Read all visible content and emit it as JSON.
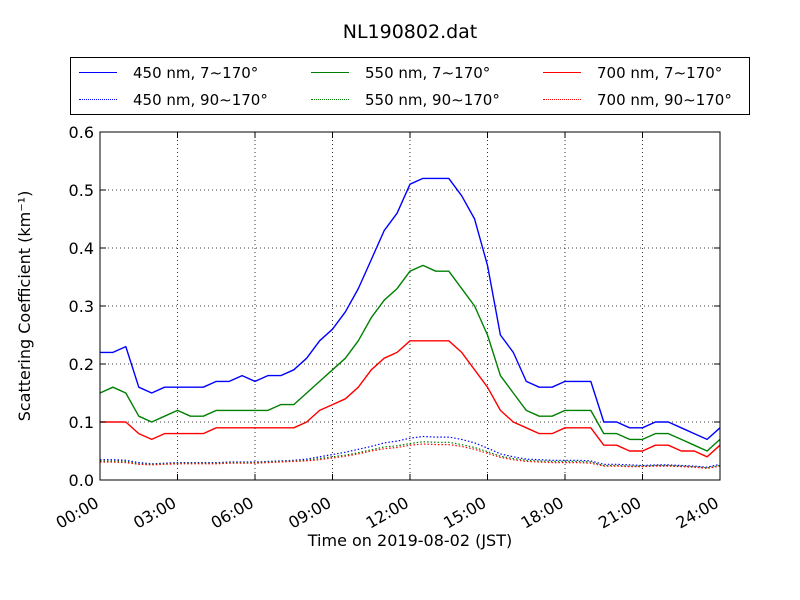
{
  "chart_data": {
    "type": "line",
    "title": "NL190802.dat",
    "xlabel": "Time on 2019-08-02 (JST)",
    "ylabel": "Scattering Coefficient (km⁻¹)",
    "xlim": [
      0,
      24
    ],
    "ylim": [
      0.0,
      0.6
    ],
    "x_tick_labels": [
      "00:00",
      "03:00",
      "06:00",
      "09:00",
      "12:00",
      "15:00",
      "18:00",
      "21:00",
      "24:00"
    ],
    "y_tick_labels": [
      "0.0",
      "0.1",
      "0.2",
      "0.3",
      "0.4",
      "0.5",
      "0.6"
    ],
    "grid": true,
    "legend_position": "top",
    "x": [
      0,
      0.5,
      1,
      1.5,
      2,
      2.5,
      3,
      3.5,
      4,
      4.5,
      5,
      5.5,
      6,
      6.5,
      7,
      7.5,
      8,
      8.5,
      9,
      9.5,
      10,
      10.5,
      11,
      11.5,
      12,
      12.5,
      13,
      13.5,
      14,
      14.5,
      15,
      15.5,
      16,
      16.5,
      17,
      17.5,
      18,
      18.5,
      19,
      19.5,
      20,
      20.5,
      21,
      21.5,
      22,
      22.5,
      23,
      23.5,
      24
    ],
    "series": [
      {
        "name": "450 nm, 7∼170°",
        "color": "#0000ff",
        "style": "solid",
        "values": [
          0.22,
          0.22,
          0.23,
          0.16,
          0.15,
          0.16,
          0.16,
          0.16,
          0.16,
          0.17,
          0.17,
          0.18,
          0.17,
          0.18,
          0.18,
          0.19,
          0.21,
          0.24,
          0.26,
          0.29,
          0.33,
          0.38,
          0.43,
          0.46,
          0.51,
          0.52,
          0.52,
          0.52,
          0.49,
          0.45,
          0.37,
          0.25,
          0.22,
          0.17,
          0.16,
          0.16,
          0.17,
          0.17,
          0.17,
          0.1,
          0.1,
          0.09,
          0.09,
          0.1,
          0.1,
          0.09,
          0.08,
          0.07,
          0.09
        ]
      },
      {
        "name": "550 nm, 7∼170°",
        "color": "#008000",
        "style": "solid",
        "values": [
          0.15,
          0.16,
          0.15,
          0.11,
          0.1,
          0.11,
          0.12,
          0.11,
          0.11,
          0.12,
          0.12,
          0.12,
          0.12,
          0.12,
          0.13,
          0.13,
          0.15,
          0.17,
          0.19,
          0.21,
          0.24,
          0.28,
          0.31,
          0.33,
          0.36,
          0.37,
          0.36,
          0.36,
          0.33,
          0.3,
          0.25,
          0.18,
          0.15,
          0.12,
          0.11,
          0.11,
          0.12,
          0.12,
          0.12,
          0.08,
          0.08,
          0.07,
          0.07,
          0.08,
          0.08,
          0.07,
          0.06,
          0.05,
          0.07
        ]
      },
      {
        "name": "700 nm, 7∼170°",
        "color": "#ff0000",
        "style": "solid",
        "values": [
          0.1,
          0.1,
          0.1,
          0.08,
          0.07,
          0.08,
          0.08,
          0.08,
          0.08,
          0.09,
          0.09,
          0.09,
          0.09,
          0.09,
          0.09,
          0.09,
          0.1,
          0.12,
          0.13,
          0.14,
          0.16,
          0.19,
          0.21,
          0.22,
          0.24,
          0.24,
          0.24,
          0.24,
          0.22,
          0.19,
          0.16,
          0.12,
          0.1,
          0.09,
          0.08,
          0.08,
          0.09,
          0.09,
          0.09,
          0.06,
          0.06,
          0.05,
          0.05,
          0.06,
          0.06,
          0.05,
          0.05,
          0.04,
          0.06
        ]
      },
      {
        "name": "450 nm, 90∼170°",
        "color": "#0000ff",
        "style": "dotted",
        "values": [
          0.035,
          0.035,
          0.034,
          0.03,
          0.028,
          0.029,
          0.03,
          0.03,
          0.03,
          0.03,
          0.031,
          0.031,
          0.031,
          0.032,
          0.033,
          0.034,
          0.036,
          0.04,
          0.044,
          0.048,
          0.053,
          0.058,
          0.064,
          0.067,
          0.072,
          0.075,
          0.074,
          0.074,
          0.07,
          0.064,
          0.055,
          0.045,
          0.04,
          0.036,
          0.035,
          0.034,
          0.034,
          0.034,
          0.033,
          0.027,
          0.027,
          0.026,
          0.025,
          0.026,
          0.026,
          0.025,
          0.024,
          0.022,
          0.027
        ]
      },
      {
        "name": "550 nm, 90∼170°",
        "color": "#008000",
        "style": "dotted",
        "values": [
          0.033,
          0.033,
          0.032,
          0.028,
          0.027,
          0.028,
          0.029,
          0.029,
          0.029,
          0.029,
          0.03,
          0.03,
          0.03,
          0.031,
          0.032,
          0.033,
          0.034,
          0.037,
          0.04,
          0.043,
          0.047,
          0.052,
          0.057,
          0.059,
          0.063,
          0.066,
          0.065,
          0.065,
          0.061,
          0.056,
          0.049,
          0.041,
          0.037,
          0.034,
          0.033,
          0.032,
          0.032,
          0.032,
          0.031,
          0.025,
          0.025,
          0.024,
          0.024,
          0.025,
          0.025,
          0.024,
          0.023,
          0.021,
          0.025
        ]
      },
      {
        "name": "700 nm, 90∼170°",
        "color": "#ff0000",
        "style": "dotted",
        "values": [
          0.031,
          0.031,
          0.03,
          0.027,
          0.026,
          0.027,
          0.028,
          0.028,
          0.028,
          0.028,
          0.029,
          0.029,
          0.029,
          0.03,
          0.031,
          0.032,
          0.033,
          0.035,
          0.038,
          0.041,
          0.045,
          0.05,
          0.054,
          0.056,
          0.06,
          0.062,
          0.061,
          0.061,
          0.058,
          0.053,
          0.046,
          0.039,
          0.035,
          0.032,
          0.031,
          0.03,
          0.03,
          0.03,
          0.029,
          0.024,
          0.024,
          0.023,
          0.023,
          0.024,
          0.024,
          0.023,
          0.022,
          0.02,
          0.024
        ]
      }
    ]
  },
  "legend": {
    "items": [
      {
        "label": "450 nm, 7∼170°",
        "color": "#0000ff",
        "style": "solid"
      },
      {
        "label": "550 nm, 7∼170°",
        "color": "#008000",
        "style": "solid"
      },
      {
        "label": "700 nm, 7∼170°",
        "color": "#ff0000",
        "style": "solid"
      },
      {
        "label": "450 nm, 90∼170°",
        "color": "#0000ff",
        "style": "dotted"
      },
      {
        "label": "550 nm, 90∼170°",
        "color": "#008000",
        "style": "dotted"
      },
      {
        "label": "700 nm, 90∼170°",
        "color": "#ff0000",
        "style": "dotted"
      }
    ]
  }
}
